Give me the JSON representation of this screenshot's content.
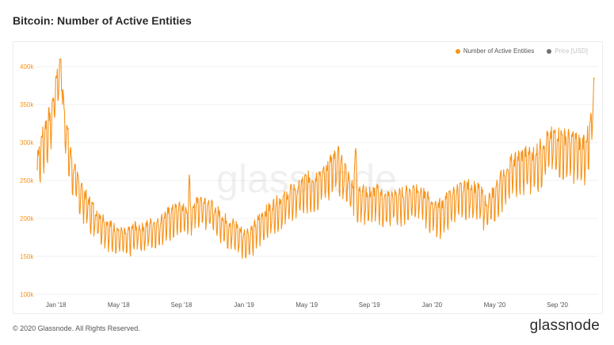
{
  "title": "Bitcoin: Number of Active Entities",
  "legend": {
    "active_label": "Number of Active Entities",
    "price_label": "Price [USD]",
    "active_color": "#f7931a",
    "price_color": "#707070"
  },
  "watermark": "glassnode",
  "footer": {
    "copyright": "© 2020 Glassnode. All Rights Reserved.",
    "logo": "glassnode"
  },
  "chart_data": {
    "type": "line",
    "grid": true,
    "legend_position": "top-right",
    "y_ticks": [
      "100k",
      "150k",
      "200k",
      "250k",
      "300k",
      "350k",
      "400k"
    ],
    "y_tick_values": [
      100000,
      150000,
      200000,
      250000,
      300000,
      350000,
      400000
    ],
    "x_ticks": [
      "Jan '18",
      "May '18",
      "Sep '18",
      "Jan '19",
      "May '19",
      "Sep '19",
      "Jan '20",
      "May '20",
      "Sep '20"
    ],
    "x_tick_months": [
      0,
      4,
      8,
      12,
      16,
      20,
      24,
      28,
      32
    ],
    "ylim": [
      100000,
      420000
    ],
    "xlim_months": [
      -1.3,
      34.6
    ],
    "series": [
      {
        "name": "Number of Active Entities",
        "color": "#f7931a",
        "x_months": [
          -1.2,
          -1.0,
          -0.8,
          -0.6,
          -0.4,
          -0.2,
          0.0,
          0.2,
          0.4,
          0.6,
          0.8,
          1.0,
          1.5,
          2.0,
          2.5,
          3.0,
          3.5,
          4.0,
          4.5,
          5.0,
          5.5,
          6.0,
          6.5,
          7.0,
          7.5,
          8.0,
          8.5,
          9.0,
          9.5,
          10.0,
          10.5,
          11.0,
          11.5,
          12.0,
          12.5,
          13.0,
          13.5,
          14.0,
          14.5,
          15.0,
          15.5,
          16.0,
          16.5,
          17.0,
          17.5,
          18.0,
          18.5,
          19.0,
          19.5,
          20.0,
          20.5,
          21.0,
          21.5,
          22.0,
          22.5,
          23.0,
          23.5,
          24.0,
          24.5,
          25.0,
          25.5,
          26.0,
          26.5,
          27.0,
          27.5,
          28.0,
          28.5,
          29.0,
          29.5,
          30.0,
          30.5,
          31.0,
          31.5,
          32.0,
          32.5,
          33.0,
          33.5,
          34.0,
          34.4
        ],
        "values": [
          270000,
          285000,
          300000,
          310000,
          320000,
          340000,
          375000,
          385000,
          360000,
          320000,
          290000,
          265000,
          235000,
          215000,
          200000,
          190000,
          180000,
          175000,
          170000,
          180000,
          178000,
          185000,
          185000,
          195000,
          200000,
          205000,
          200000,
          215000,
          215000,
          205000,
          195000,
          185000,
          180000,
          170000,
          175000,
          190000,
          200000,
          210000,
          215000,
          225000,
          230000,
          240000,
          240000,
          250000,
          260000,
          270000,
          250000,
          230000,
          225000,
          220000,
          225000,
          215000,
          220000,
          220000,
          225000,
          230000,
          220000,
          210000,
          205000,
          215000,
          225000,
          230000,
          230000,
          225000,
          210000,
          225000,
          245000,
          260000,
          265000,
          270000,
          270000,
          280000,
          295000,
          295000,
          290000,
          290000,
          280000,
          295000,
          360000
        ],
        "amplitudes": [
          40000,
          40000,
          45000,
          45000,
          45000,
          40000,
          35000,
          30000,
          35000,
          35000,
          40000,
          35000,
          35000,
          30000,
          30000,
          28000,
          28000,
          25000,
          25000,
          28000,
          25000,
          25000,
          25000,
          28000,
          30000,
          28000,
          28000,
          30000,
          30000,
          28000,
          28000,
          28000,
          30000,
          28000,
          28000,
          30000,
          30000,
          30000,
          30000,
          32000,
          35000,
          35000,
          35000,
          35000,
          40000,
          40000,
          35000,
          35000,
          35000,
          35000,
          32000,
          32000,
          32000,
          32000,
          32000,
          32000,
          32000,
          35000,
          35000,
          32000,
          32000,
          32000,
          35000,
          35000,
          32000,
          32000,
          38000,
          38000,
          40000,
          42000,
          42000,
          42000,
          40000,
          42000,
          45000,
          45000,
          45000,
          45000,
          20000
        ]
      }
    ]
  }
}
